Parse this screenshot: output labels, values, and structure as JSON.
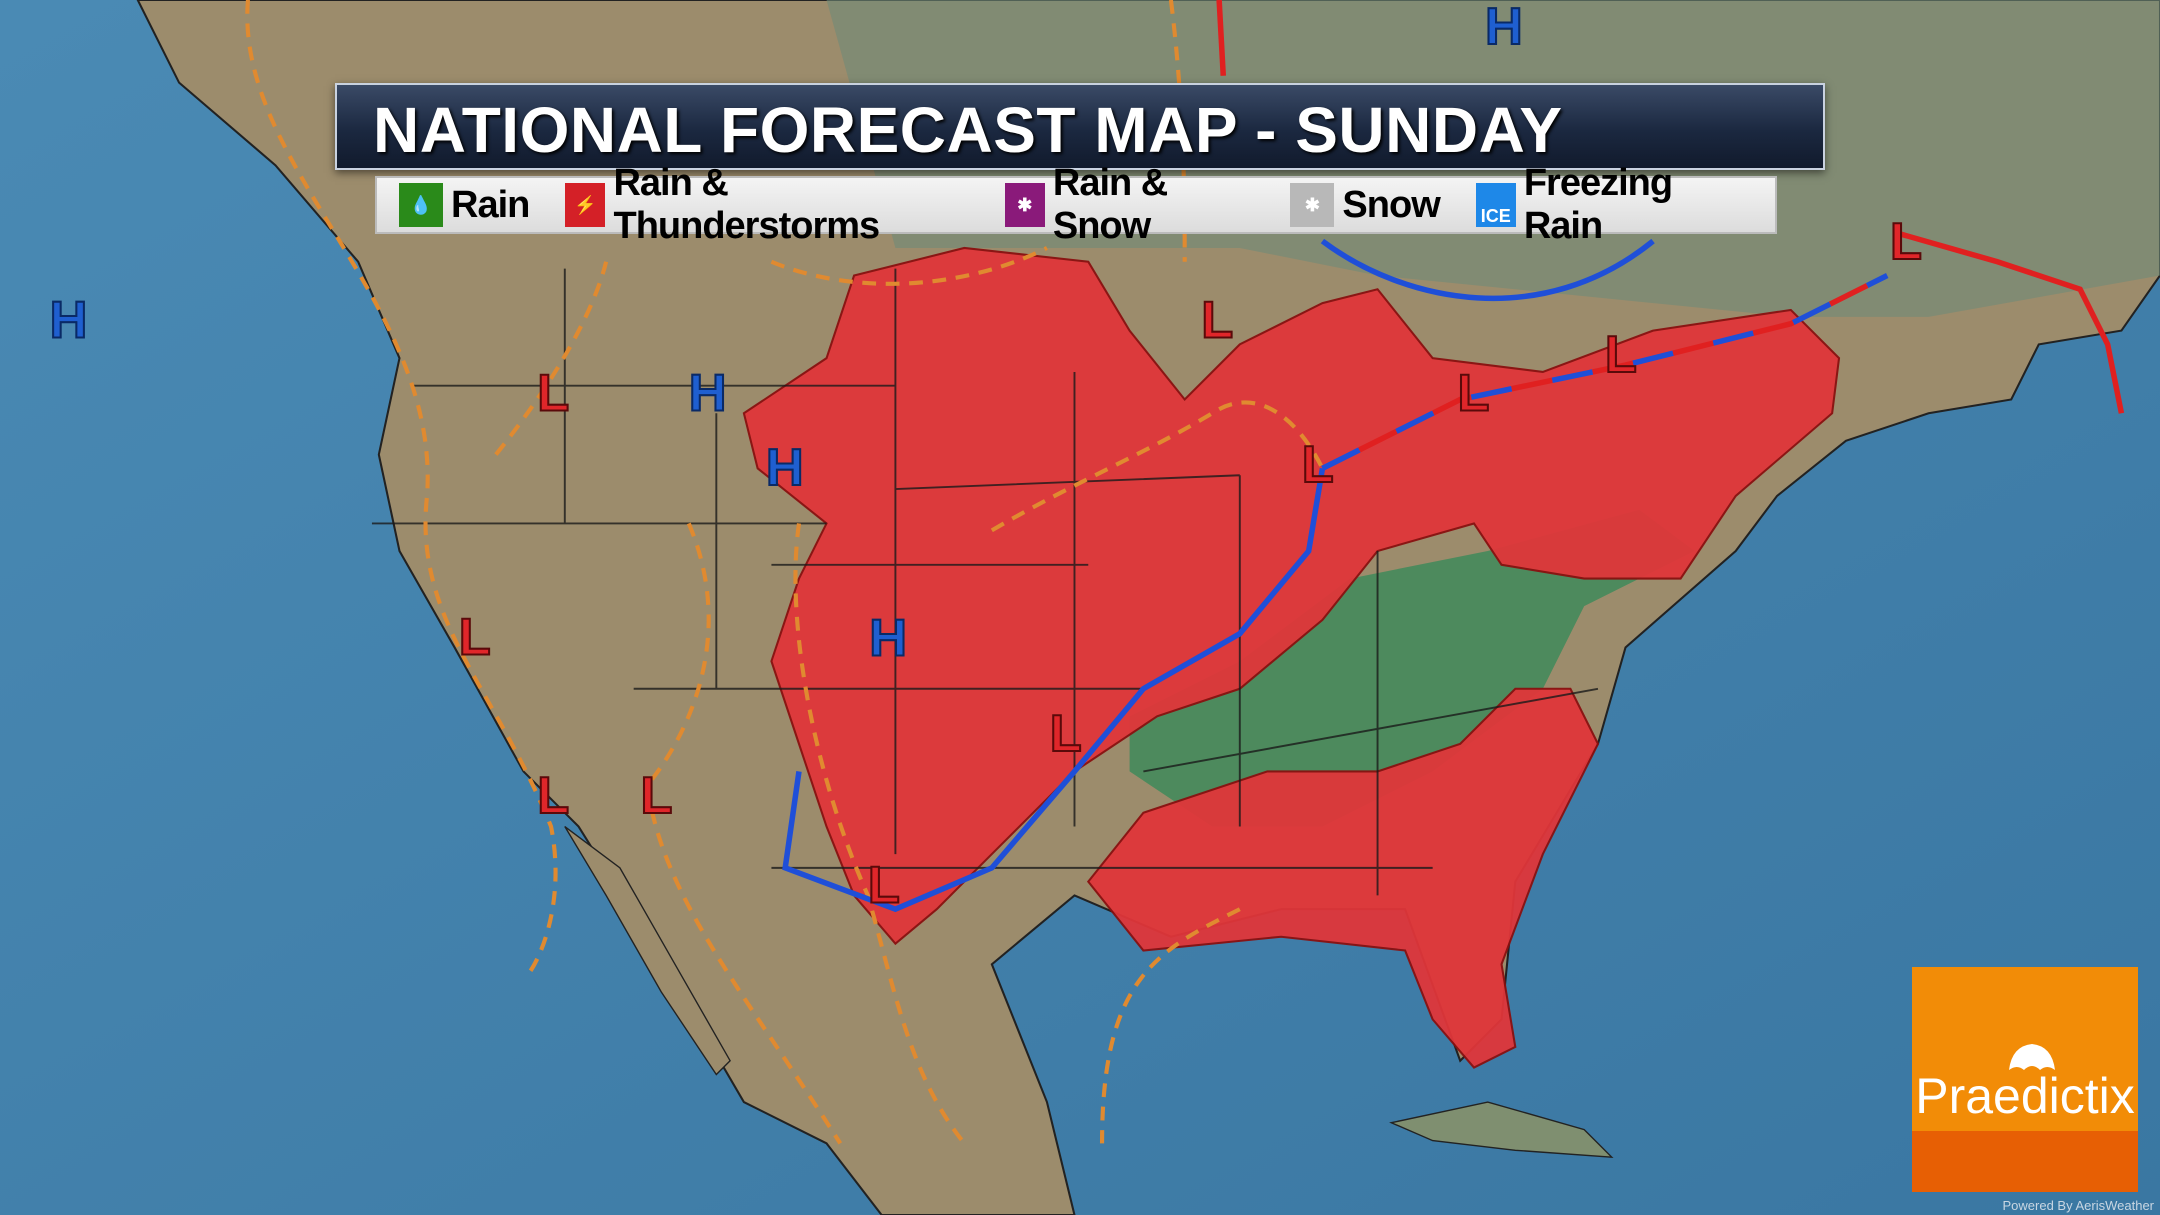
{
  "title": "NATIONAL FORECAST MAP - SUNDAY",
  "legend": [
    {
      "label": "Rain",
      "color": "#2a8a1a",
      "icon": "raindrop-icon"
    },
    {
      "label": "Rain & Thunderstorms",
      "color": "#d42027",
      "icon": "lightning-icon"
    },
    {
      "label": "Rain & Snow",
      "color": "#8a1a7a",
      "icon": "snowflake-icon"
    },
    {
      "label": "Snow",
      "color": "#b8b8b8",
      "icon": "snowflake-icon"
    },
    {
      "label": "Freezing Rain",
      "color": "#1e88e8",
      "icon": "ice-icon",
      "badge": "ICE"
    }
  ],
  "pressure_labels": {
    "high": "H",
    "low": "L"
  },
  "colors": {
    "ocean": "#3f7fa8",
    "land": "#9a8a6a",
    "precip_thunder": "#e0363a",
    "precip_rain": "#3f8a5a",
    "cold_front": "#1f4fd8",
    "warm_front": "#e02020",
    "trough": "#e08a30"
  },
  "logo": {
    "brand": "Praedictix",
    "credit": "Powered By AerisWeather"
  }
}
